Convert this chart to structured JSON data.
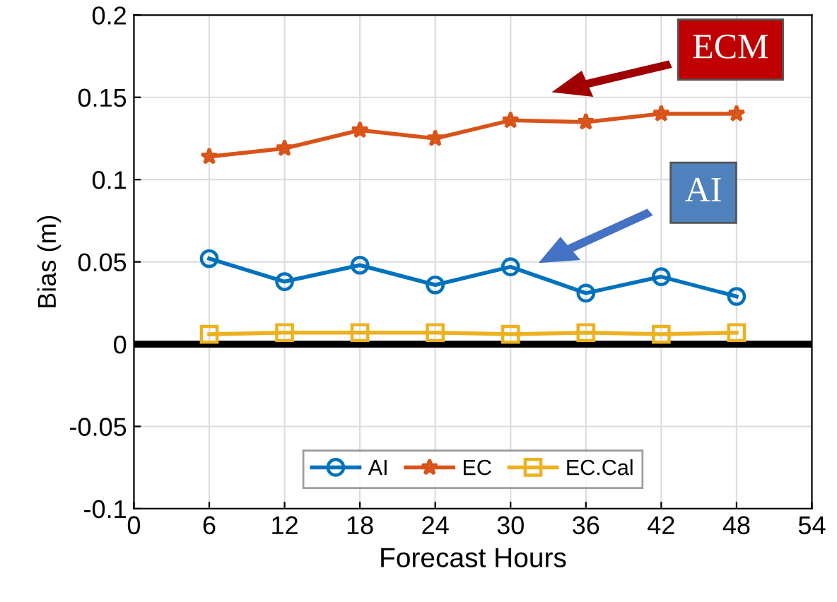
{
  "chart_data": {
    "type": "line",
    "xlabel": "Forecast Hours",
    "ylabel": "Bias (m)",
    "x": [
      6,
      12,
      18,
      24,
      30,
      36,
      42,
      48
    ],
    "series": [
      {
        "name": "AI",
        "color": "#0072bd",
        "marker": "circle",
        "values": [
          0.052,
          0.038,
          0.048,
          0.036,
          0.047,
          0.031,
          0.041,
          0.029
        ]
      },
      {
        "name": "EC",
        "color": "#d95319",
        "marker": "star",
        "values": [
          0.114,
          0.119,
          0.13,
          0.125,
          0.136,
          0.135,
          0.14,
          0.14
        ]
      },
      {
        "name": "EC.Cal",
        "color": "#edb120",
        "marker": "square",
        "values": [
          0.006,
          0.007,
          0.007,
          0.007,
          0.006,
          0.007,
          0.006,
          0.007
        ]
      }
    ],
    "xlim": [
      0,
      54
    ],
    "xticks": [
      0,
      6,
      12,
      18,
      24,
      30,
      36,
      42,
      48,
      54
    ],
    "ylim": [
      -0.1,
      0.2
    ],
    "yticks": [
      -0.1,
      -0.05,
      0,
      0.05,
      0.1,
      0.15,
      0.2
    ],
    "ref_lines": [
      {
        "axis": "y",
        "value": 0,
        "color": "#000000"
      }
    ],
    "annotations": [
      "ECM",
      "AI"
    ],
    "grid": true,
    "legend": "bottom",
    "line_style": "solid"
  }
}
